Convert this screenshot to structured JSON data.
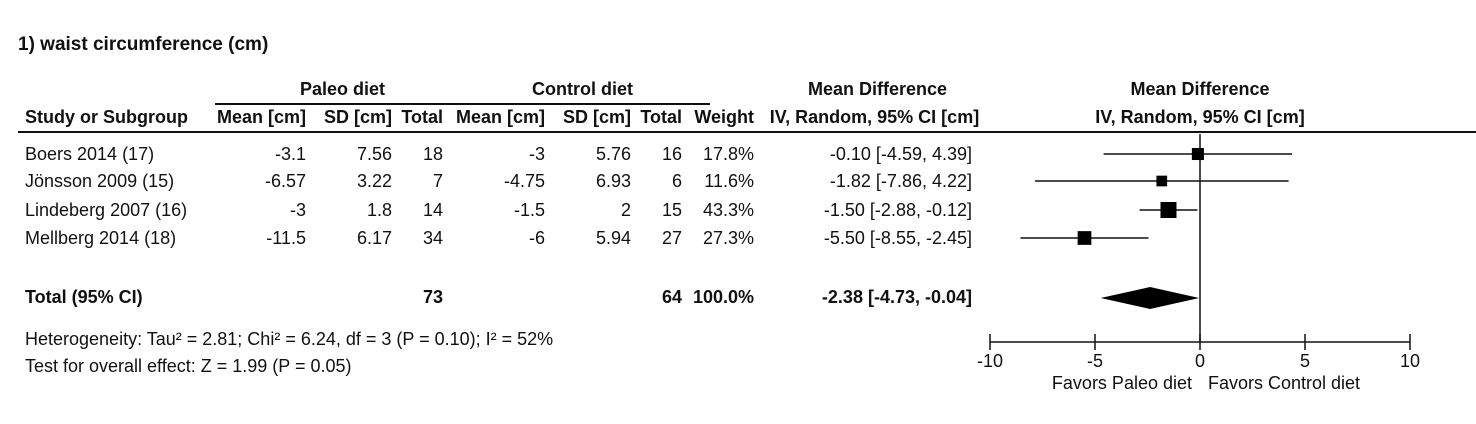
{
  "title": "1) waist circumference (cm)",
  "headers": {
    "group1": "Paleo diet",
    "group2": "Control diet",
    "md_group": "Mean Difference",
    "study": "Study or Subgroup",
    "mean1": "Mean [cm]",
    "sd1": "SD [cm]",
    "total1": "Total",
    "mean2": "Mean [cm]",
    "sd2": "SD [cm]",
    "total2": "Total",
    "weight": "Weight",
    "md": "IV, Random, 95% CI [cm]",
    "plot_group": "Mean Difference",
    "plot_md": "IV, Random, 95% CI [cm]"
  },
  "rows": [
    {
      "study": "Boers 2014 (17)",
      "mean1": "-3.1",
      "sd1": "7.56",
      "total1": "18",
      "mean2": "-3",
      "sd2": "5.76",
      "total2": "16",
      "weight": "17.8%",
      "md": "-0.10 [-4.59, 4.39]"
    },
    {
      "study": "Jönsson 2009 (15)",
      "mean1": "-6.57",
      "sd1": "3.22",
      "total1": "7",
      "mean2": "-4.75",
      "sd2": "6.93",
      "total2": "6",
      "weight": "11.6%",
      "md": "-1.82 [-7.86, 4.22]"
    },
    {
      "study": "Lindeberg 2007 (16)",
      "mean1": "-3",
      "sd1": "1.8",
      "total1": "14",
      "mean2": "-1.5",
      "sd2": "2",
      "total2": "15",
      "weight": "43.3%",
      "md": "-1.50 [-2.88, -0.12]"
    },
    {
      "study": "Mellberg 2014 (18)",
      "mean1": "-11.5",
      "sd1": "6.17",
      "total1": "34",
      "mean2": "-6",
      "sd2": "5.94",
      "total2": "27",
      "weight": "27.3%",
      "md": "-5.50 [-8.55, -2.45]"
    }
  ],
  "total": {
    "study": "Total (95% CI)",
    "total1": "73",
    "total2": "64",
    "weight": "100.0%",
    "md": "-2.38 [-4.73, -0.04]"
  },
  "heterogeneity": "Heterogeneity: Tau² = 2.81; Chi² = 6.24, df = 3 (P = 0.10); I² = 52%",
  "overall_effect": "Test for overall effect: Z = 1.99 (P = 0.05)",
  "axis_left_label": "Favors Paleo diet",
  "axis_right_label": "Favors Control diet",
  "chart_data": {
    "type": "forest",
    "xlim": [
      -10,
      10
    ],
    "ticks": [
      -10,
      -5,
      0,
      5,
      10
    ],
    "studies": [
      {
        "name": "Boers 2014 (17)",
        "md": -0.1,
        "lo": -4.59,
        "hi": 4.39,
        "weight": 17.8
      },
      {
        "name": "Jönsson 2009 (15)",
        "md": -1.82,
        "lo": -7.86,
        "hi": 4.22,
        "weight": 11.6
      },
      {
        "name": "Lindeberg 2007 (16)",
        "md": -1.5,
        "lo": -2.88,
        "hi": -0.12,
        "weight": 43.3
      },
      {
        "name": "Mellberg 2014 (18)",
        "md": -5.5,
        "lo": -8.55,
        "hi": -2.45,
        "weight": 27.3
      }
    ],
    "pooled": {
      "md": -2.38,
      "lo": -4.73,
      "hi": -0.04
    }
  }
}
